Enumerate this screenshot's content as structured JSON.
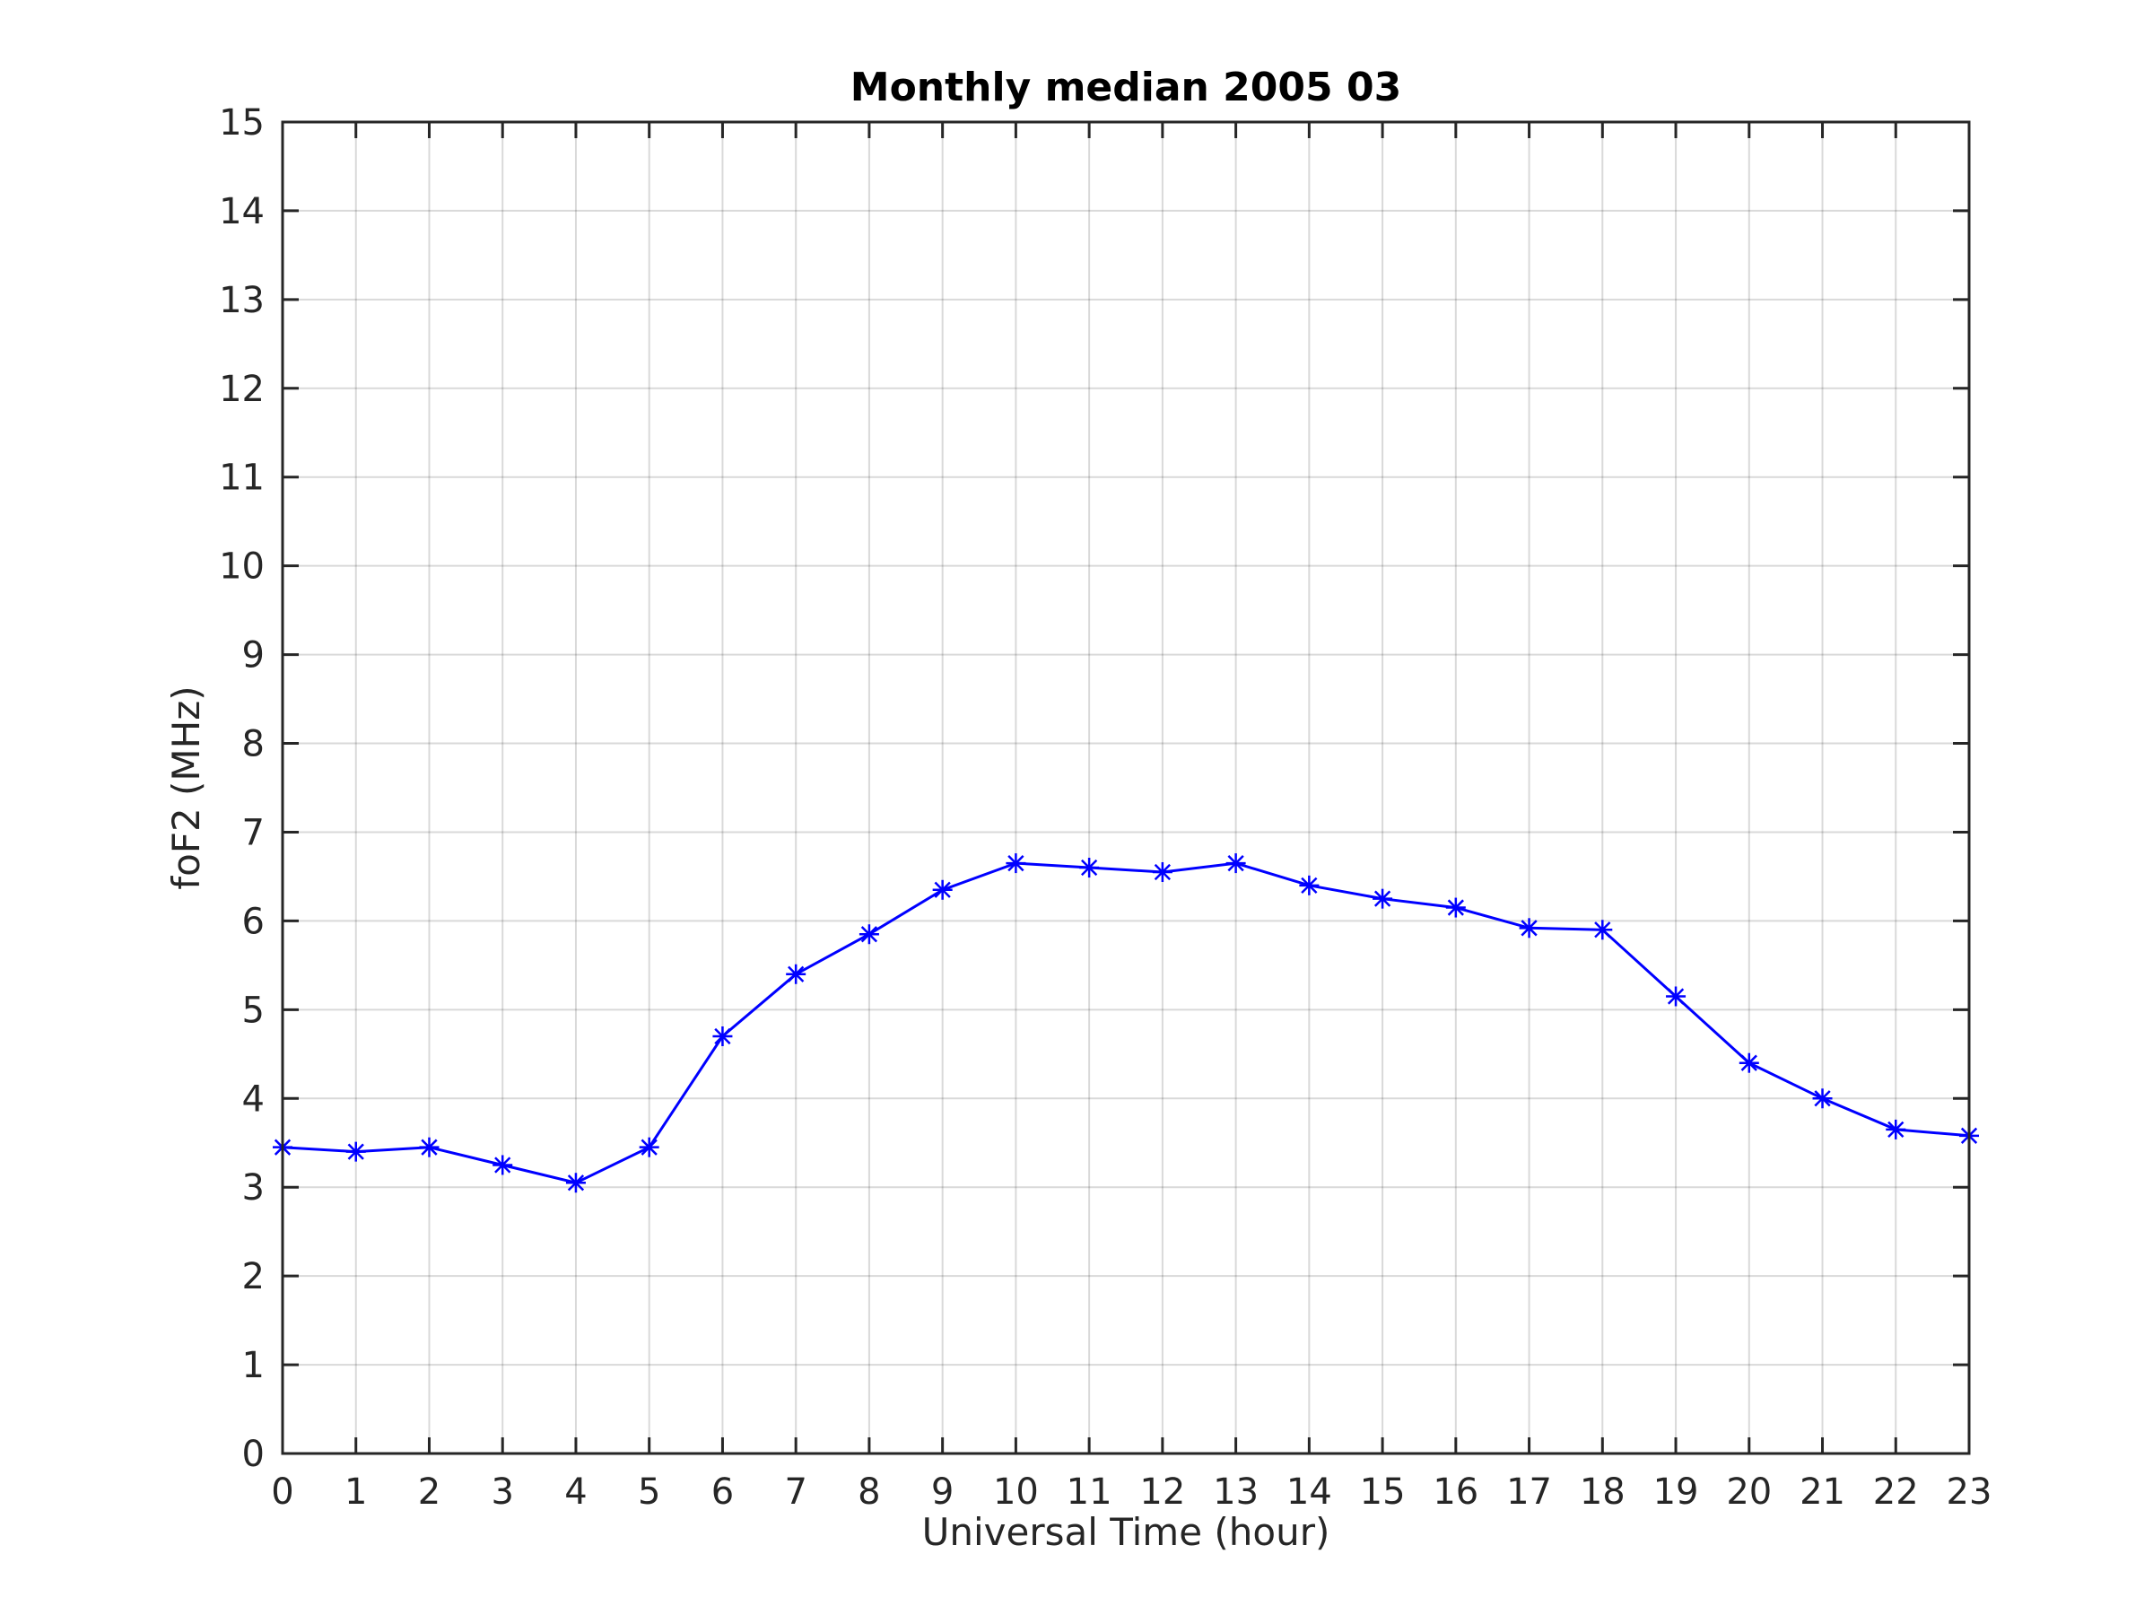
{
  "chart_data": {
    "type": "line",
    "title": "Monthly median 2005 03",
    "xlabel": "Universal Time (hour)",
    "ylabel": "foF2 (MHz)",
    "xlim": [
      0,
      23
    ],
    "ylim": [
      0,
      15
    ],
    "xticks": [
      "0",
      "1",
      "2",
      "3",
      "4",
      "5",
      "6",
      "7",
      "8",
      "9",
      "10",
      "11",
      "12",
      "13",
      "14",
      "15",
      "16",
      "17",
      "18",
      "19",
      "20",
      "21",
      "22",
      "23"
    ],
    "yticks": [
      "0",
      "1",
      "2",
      "3",
      "4",
      "5",
      "6",
      "7",
      "8",
      "9",
      "10",
      "11",
      "12",
      "13",
      "14",
      "15"
    ],
    "grid": true,
    "marker": "asterisk",
    "color": "#0000ff",
    "series": [
      {
        "x": [
          0,
          1,
          2,
          3,
          4,
          5,
          6,
          7,
          8,
          9,
          10,
          11,
          12,
          13,
          14,
          15,
          16,
          17,
          18,
          19,
          20,
          21,
          22,
          23
        ],
        "values": [
          3.45,
          3.4,
          3.45,
          3.25,
          3.05,
          3.45,
          4.7,
          5.4,
          5.85,
          6.35,
          6.65,
          6.6,
          6.55,
          6.65,
          6.4,
          6.25,
          6.15,
          5.92,
          5.9,
          5.15,
          4.4,
          4.0,
          3.65,
          3.58
        ]
      }
    ]
  }
}
